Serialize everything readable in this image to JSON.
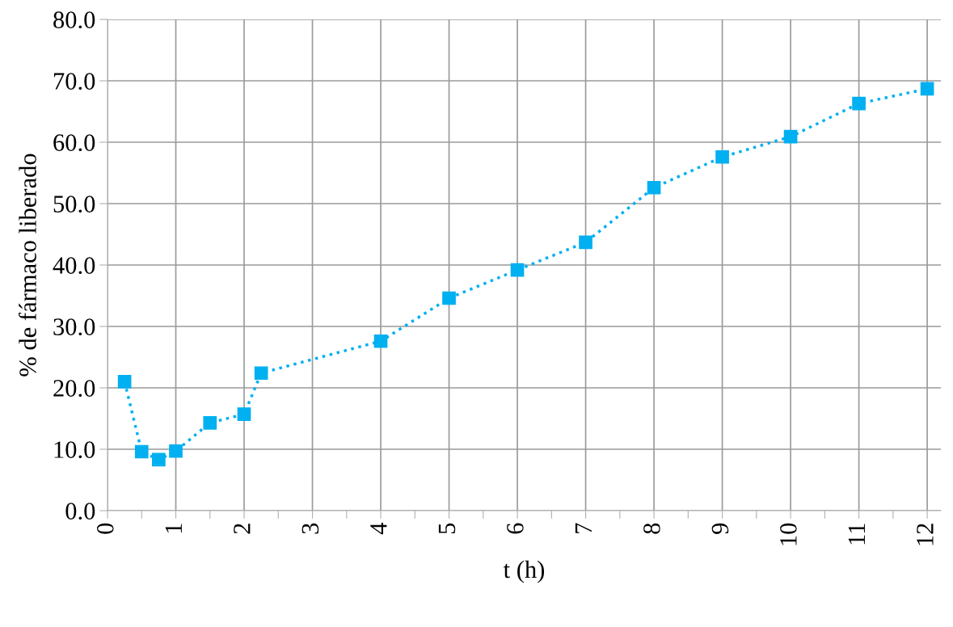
{
  "chart_data": {
    "type": "line",
    "xlabel": "t (h)",
    "ylabel": "% de fármaco liberado",
    "x": [
      0.25,
      0.5,
      0.75,
      1,
      1.5,
      2,
      2.25,
      4,
      5,
      6,
      7,
      8,
      9,
      10,
      11,
      12
    ],
    "series": [
      {
        "color": "#00b0f0",
        "values": [
          21.0,
          9.6,
          8.3,
          9.7,
          14.3,
          15.7,
          22.4,
          27.6,
          34.6,
          39.2,
          43.7,
          52.6,
          57.6,
          60.9,
          66.3,
          68.7
        ]
      }
    ],
    "xlim": [
      0,
      12.2
    ],
    "xticks": [
      0,
      {
        "value": 0.5,
        "label": null
      },
      1,
      {
        "value": 1.5,
        "label": null
      },
      2,
      {
        "value": 2.5,
        "label": null
      },
      3,
      {
        "value": 3.5,
        "label": null
      },
      4,
      {
        "value": 4.5,
        "label": null
      },
      5,
      {
        "value": 5.5,
        "label": null
      },
      6,
      {
        "value": 6.5,
        "label": null
      },
      7,
      {
        "value": 7.5,
        "label": null
      },
      8,
      {
        "value": 8.5,
        "label": null
      },
      9,
      {
        "value": 9.5,
        "label": null
      },
      10,
      {
        "value": 10.5,
        "label": null
      },
      11,
      {
        "value": 11.5,
        "label": null
      },
      12
    ],
    "ylim": [
      0,
      80
    ],
    "yticks": [
      {
        "value": 0,
        "label": "0.0"
      },
      {
        "value": 10,
        "label": "10.0"
      },
      {
        "value": 20,
        "label": "20.0"
      },
      {
        "value": 30,
        "label": "30.0"
      },
      {
        "value": 40,
        "label": "40.0"
      },
      {
        "value": 50,
        "label": "50.0"
      },
      {
        "value": 60,
        "label": "60.0"
      },
      {
        "value": 70,
        "label": "70.0"
      },
      {
        "value": 80,
        "label": "80.0"
      }
    ],
    "grid": true,
    "marker": "square",
    "line_style": "dotted"
  }
}
